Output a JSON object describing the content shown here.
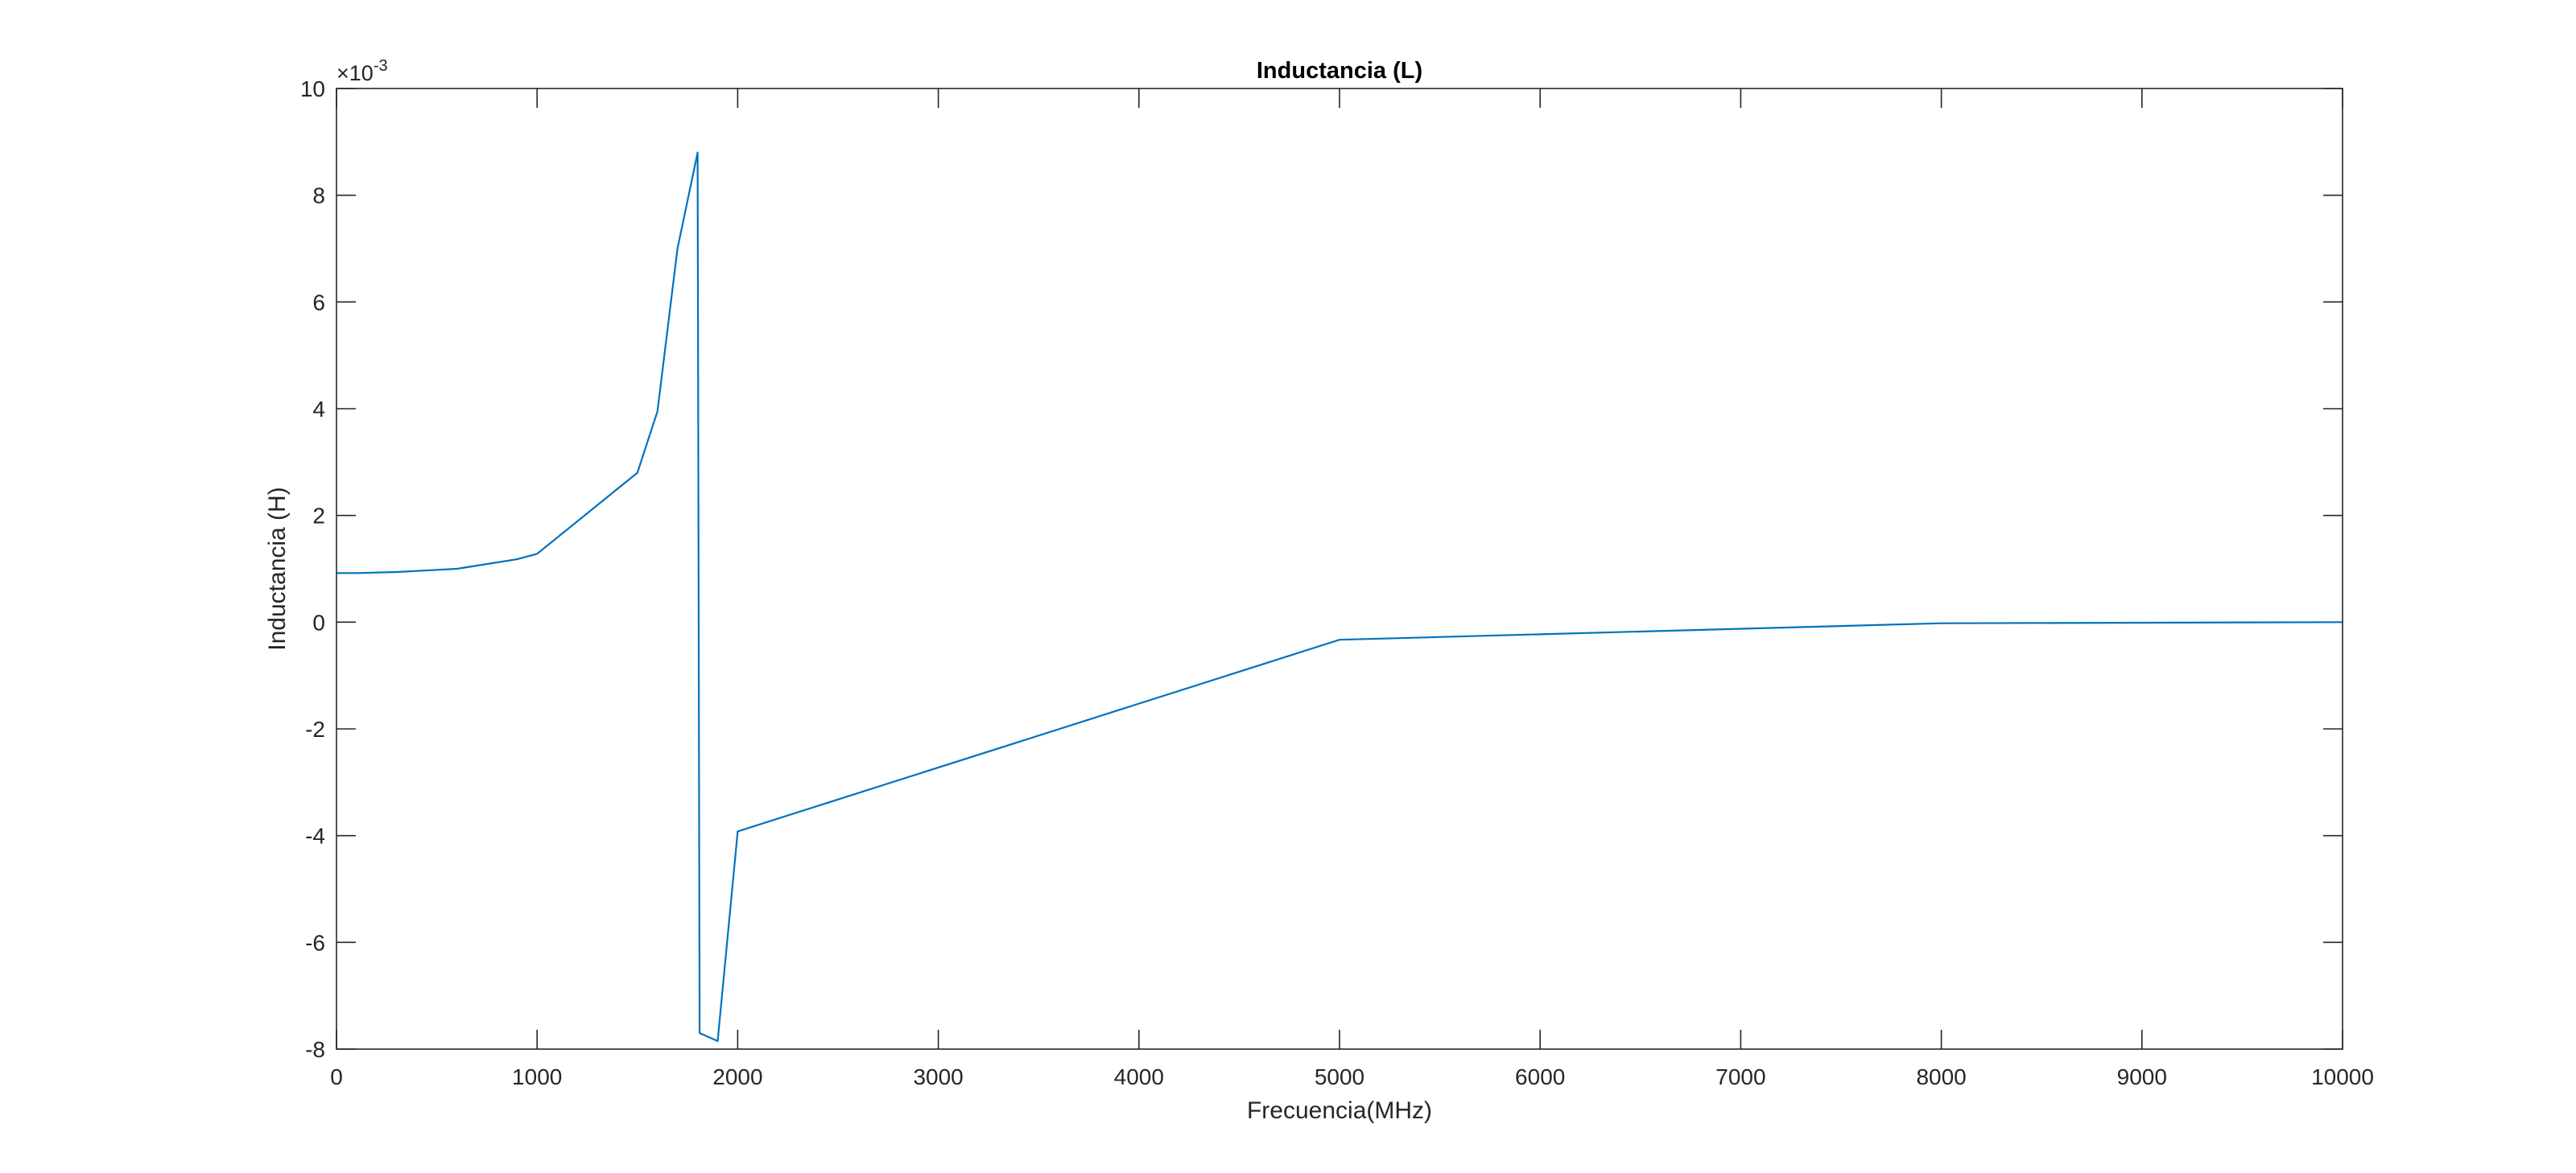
{
  "chart_data": {
    "type": "line",
    "title": "Inductancia (L)",
    "xlabel": "Frecuencia(MHz)",
    "ylabel": "Inductancia (H)",
    "y_exponent_label": "×10",
    "y_exponent_power": "-3",
    "xlim": [
      0,
      10000
    ],
    "ylim": [
      -8,
      10
    ],
    "y_scale_note": "values in units of 10^-3 H",
    "x_ticks": [
      0,
      1000,
      2000,
      3000,
      4000,
      5000,
      6000,
      7000,
      8000,
      9000,
      10000
    ],
    "x_tick_labels": [
      "0",
      "1000",
      "2000",
      "3000",
      "4000",
      "5000",
      "6000",
      "7000",
      "8000",
      "9000",
      "10000"
    ],
    "y_ticks": [
      -8,
      -6,
      -4,
      -2,
      0,
      2,
      4,
      6,
      8,
      10
    ],
    "y_tick_labels": [
      "-8",
      "-6",
      "-4",
      "-2",
      "0",
      "2",
      "4",
      "6",
      "8",
      "10"
    ],
    "grid": false,
    "legend": "none",
    "series": [
      {
        "color": "#0072BD",
        "x": [
          0,
          100,
          300,
          600,
          900,
          1000,
          1500,
          1600,
          1700,
          1800,
          1810,
          1900,
          2000,
          5000,
          8000,
          10000
        ],
        "y": [
          0.92,
          0.92,
          0.94,
          1.0,
          1.18,
          1.28,
          2.8,
          3.95,
          7.0,
          8.8,
          -7.7,
          -7.85,
          -3.92,
          -0.33,
          -0.02,
          0.0
        ]
      }
    ]
  }
}
